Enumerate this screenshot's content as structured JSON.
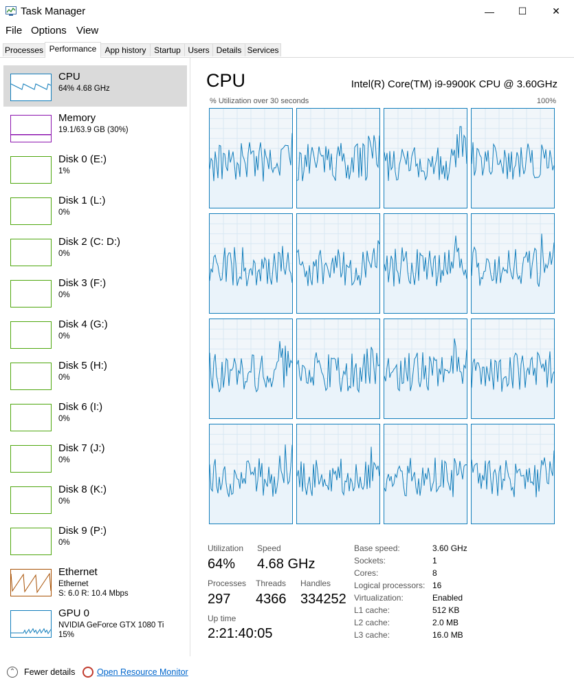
{
  "window": {
    "title": "Task Manager",
    "minimize": "—",
    "maximize": "☐",
    "close": "✕"
  },
  "menu": [
    "File",
    "Options",
    "View"
  ],
  "tabs": [
    "Processes",
    "Performance",
    "App history",
    "Startup",
    "Users",
    "Details",
    "Services"
  ],
  "active_tab": "Performance",
  "sidebar": [
    {
      "name": "CPU",
      "line1": "64%  4.68 GHz",
      "line2": "",
      "color": "#117dbb",
      "selected": true,
      "icon": "cpu-graph-icon"
    },
    {
      "name": "Memory",
      "line1": "19.1/63.9 GB (30%)",
      "line2": "",
      "color": "#8b12ae",
      "icon": "memory-graph-icon"
    },
    {
      "name": "Disk 0 (E:)",
      "line1": "1%",
      "line2": "",
      "color": "#4da60c",
      "icon": "disk-graph-icon"
    },
    {
      "name": "Disk 1 (L:)",
      "line1": "0%",
      "line2": "",
      "color": "#4da60c",
      "icon": "disk-graph-icon"
    },
    {
      "name": "Disk 2 (C: D:)",
      "line1": "0%",
      "line2": "",
      "color": "#4da60c",
      "icon": "disk-graph-icon"
    },
    {
      "name": "Disk 3 (F:)",
      "line1": "0%",
      "line2": "",
      "color": "#4da60c",
      "icon": "disk-graph-icon"
    },
    {
      "name": "Disk 4 (G:)",
      "line1": "0%",
      "line2": "",
      "color": "#4da60c",
      "icon": "disk-graph-icon"
    },
    {
      "name": "Disk 5 (H:)",
      "line1": "0%",
      "line2": "",
      "color": "#4da60c",
      "icon": "disk-graph-icon"
    },
    {
      "name": "Disk 6 (I:)",
      "line1": "0%",
      "line2": "",
      "color": "#4da60c",
      "icon": "disk-graph-icon"
    },
    {
      "name": "Disk 7 (J:)",
      "line1": "0%",
      "line2": "",
      "color": "#4da60c",
      "icon": "disk-graph-icon"
    },
    {
      "name": "Disk 8 (K:)",
      "line1": "0%",
      "line2": "",
      "color": "#4da60c",
      "icon": "disk-graph-icon"
    },
    {
      "name": "Disk 9 (P:)",
      "line1": "0%",
      "line2": "",
      "color": "#4da60c",
      "icon": "disk-graph-icon"
    },
    {
      "name": "Ethernet",
      "line1": "Ethernet",
      "line2": "S: 6.0  R: 10.4 Mbps",
      "color": "#a74f01",
      "icon": "ethernet-graph-icon"
    },
    {
      "name": "GPU 0",
      "line1": "NVIDIA GeForce GTX 1080 Ti",
      "line2": "15%",
      "color": "#117dbb",
      "icon": "gpu-graph-icon"
    }
  ],
  "main": {
    "title": "CPU",
    "model": "Intel(R) Core(TM) i9-9900K CPU @ 3.60GHz",
    "graph_label": "% Utilization over 30 seconds",
    "graph_max": "100%",
    "stats": {
      "utilization_label": "Utilization",
      "utilization": "64%",
      "speed_label": "Speed",
      "speed": "4.68 GHz",
      "processes_label": "Processes",
      "processes": "297",
      "threads_label": "Threads",
      "threads": "4366",
      "handles_label": "Handles",
      "handles": "334252",
      "uptime_label": "Up time",
      "uptime": "2:21:40:05"
    },
    "specs": [
      {
        "label": "Base speed:",
        "value": "3.60 GHz"
      },
      {
        "label": "Sockets:",
        "value": "1"
      },
      {
        "label": "Cores:",
        "value": "8"
      },
      {
        "label": "Logical processors:",
        "value": "16"
      },
      {
        "label": "Virtualization:",
        "value": "Enabled"
      },
      {
        "label": "L1 cache:",
        "value": "512 KB"
      },
      {
        "label": "L2 cache:",
        "value": "2.0 MB"
      },
      {
        "label": "L3 cache:",
        "value": "16.0 MB"
      }
    ]
  },
  "footer": {
    "fewer": "Fewer details",
    "resource_monitor": "Open Resource Monitor"
  }
}
